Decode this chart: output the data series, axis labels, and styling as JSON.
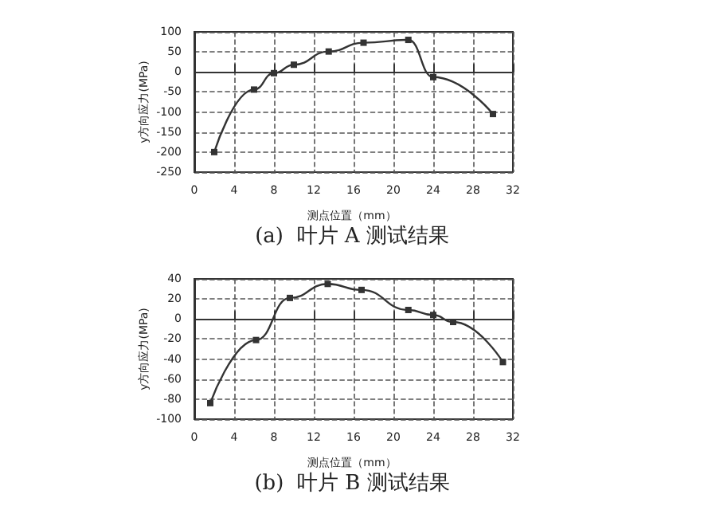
{
  "chart_data": [
    {
      "type": "line",
      "title": "(a)  叶片 A 测试结果",
      "xlabel": "测点位置（mm）",
      "ylabel": "y方向应力(MPa)",
      "xlim": [
        0,
        32
      ],
      "xticks": [
        0,
        4,
        8,
        12,
        16,
        20,
        24,
        28,
        32
      ],
      "ylim": [
        -250,
        100
      ],
      "yticks": [
        -250,
        -200,
        -150,
        -100,
        -50,
        0,
        50,
        100
      ],
      "grid": true,
      "marker": "square",
      "line_style": "solid",
      "series": [
        {
          "color": "#333333",
          "x": [
            2,
            6,
            8,
            10,
            13.5,
            17,
            21.5,
            24,
            30
          ],
          "values": [
            -200,
            -44,
            -3,
            18,
            51,
            73,
            80,
            -13,
            -105
          ]
        }
      ]
    },
    {
      "type": "line",
      "title": "(b)  叶片 B 测试结果",
      "xlabel": "测点位置（mm）",
      "ylabel": "y方向应力(MPa)",
      "xlim": [
        0,
        32
      ],
      "xticks": [
        0,
        4,
        8,
        12,
        16,
        20,
        24,
        28,
        32
      ],
      "ylim": [
        -100,
        40
      ],
      "yticks": [
        -100,
        -80,
        -60,
        -40,
        -20,
        0,
        20,
        40
      ],
      "grid": true,
      "marker": "square",
      "line_style": "solid",
      "series": [
        {
          "color": "#333333",
          "x": [
            1.6,
            6.2,
            9.6,
            13.4,
            16.8,
            21.5,
            24,
            26,
            31
          ],
          "values": [
            -84,
            -21,
            21,
            35,
            29,
            9,
            4,
            -3,
            -43
          ]
        }
      ]
    }
  ]
}
